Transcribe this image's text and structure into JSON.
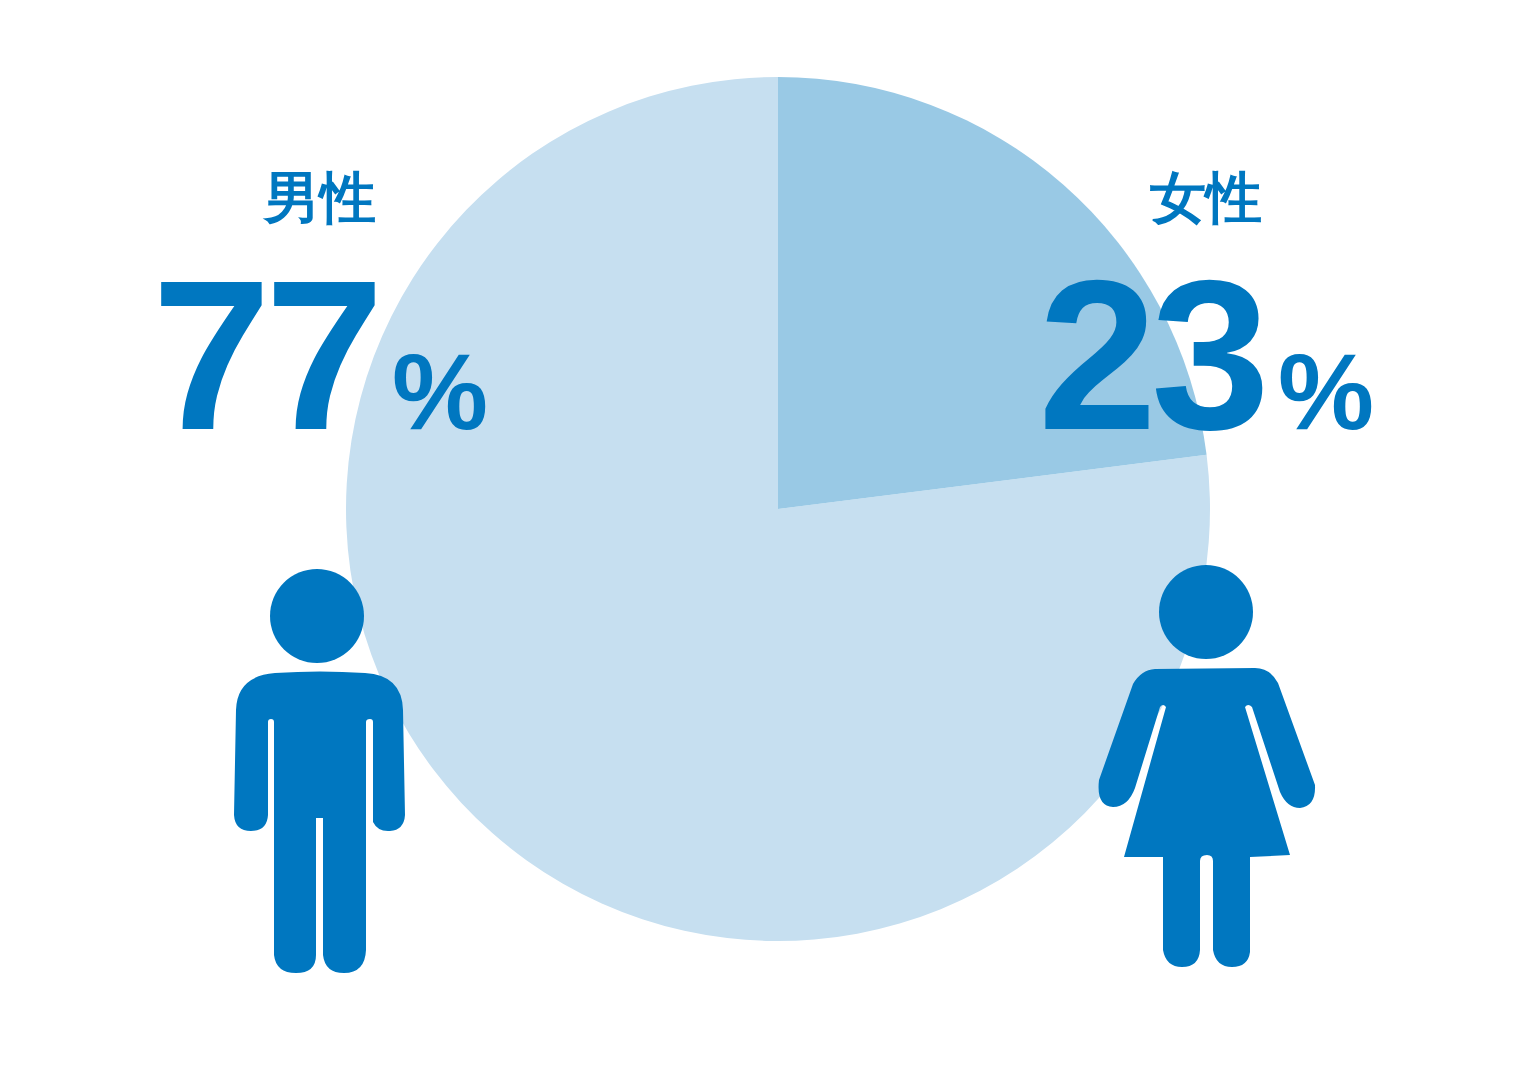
{
  "chart_data": {
    "type": "pie",
    "categories": [
      "男性",
      "女性"
    ],
    "values": [
      77,
      23
    ],
    "colors": [
      "#c6dff0",
      "#99c9e5"
    ],
    "value_labels": [
      "77%",
      "23%"
    ]
  }
}
